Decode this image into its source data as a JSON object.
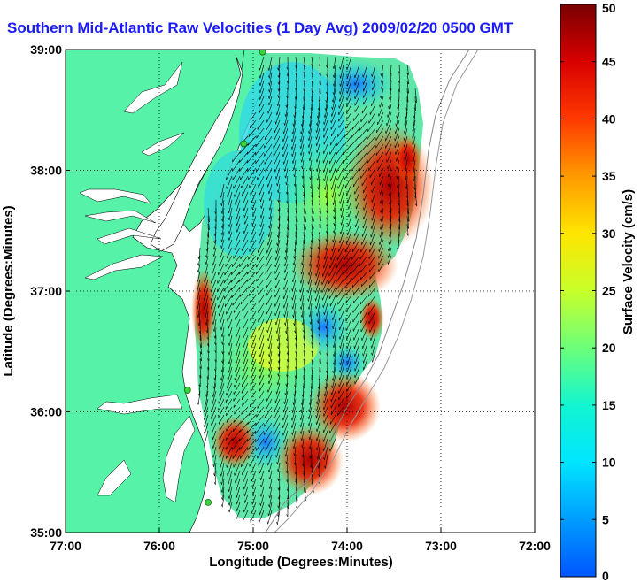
{
  "chart_data": {
    "type": "heatmap",
    "title": "Southern Mid-Atlantic Raw Velocities (1 Day Avg) 2009/02/20 0500 GMT",
    "xlabel": "Longitude (Degrees:Minutes)",
    "ylabel": "Latitude (Degrees:Minutes)",
    "colorbar_label": "Surface Velocity (cm/s)",
    "xlim": [
      -77,
      -72
    ],
    "ylim": [
      35,
      39
    ],
    "x_ticks": [
      {
        "value": -77,
        "label": "77:00"
      },
      {
        "value": -76,
        "label": "76:00"
      },
      {
        "value": -75,
        "label": "75:00"
      },
      {
        "value": -74,
        "label": "74:00"
      },
      {
        "value": -73,
        "label": "73:00"
      },
      {
        "value": -72,
        "label": "72:00"
      }
    ],
    "y_ticks": [
      {
        "value": 35,
        "label": "35:00"
      },
      {
        "value": 36,
        "label": "36:00"
      },
      {
        "value": 37,
        "label": "37:00"
      },
      {
        "value": 38,
        "label": "38:00"
      },
      {
        "value": 39,
        "label": "39:00"
      }
    ],
    "colorbar": {
      "range": [
        0,
        50
      ],
      "ticks": [
        0,
        5,
        10,
        15,
        20,
        25,
        30,
        35,
        40,
        45,
        50
      ]
    },
    "grid": true,
    "land_color": "#55f2a8",
    "stations": [
      {
        "lon": -74.9,
        "lat": 38.98
      },
      {
        "lon": -75.1,
        "lat": 38.22
      },
      {
        "lon": -75.7,
        "lat": 36.18
      },
      {
        "lon": -75.48,
        "lat": 35.25
      }
    ]
  }
}
